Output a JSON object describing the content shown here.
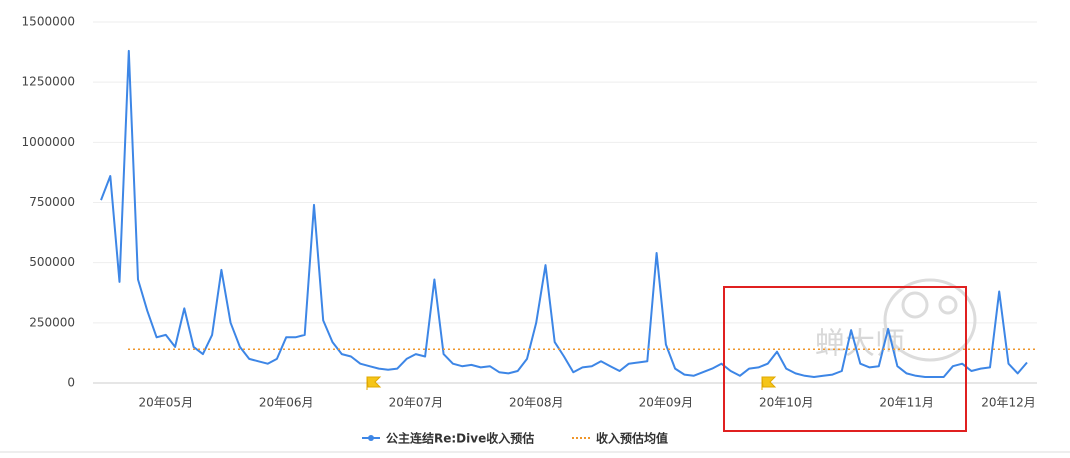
{
  "chart_data": {
    "type": "line",
    "categories": [
      null,
      null,
      null,
      null,
      null,
      null,
      null,
      "20年05月",
      null,
      null,
      null,
      null,
      null,
      null,
      null,
      null,
      null,
      null,
      null,
      null,
      "20年06月",
      null,
      null,
      null,
      null,
      null,
      null,
      null,
      null,
      null,
      null,
      null,
      null,
      null,
      "20年07月",
      null,
      null,
      null,
      null,
      null,
      null,
      null,
      null,
      null,
      null,
      null,
      null,
      "20年08月",
      null,
      null,
      null,
      null,
      null,
      null,
      null,
      null,
      null,
      null,
      null,
      null,
      null,
      "20年09月",
      null,
      null,
      null,
      null,
      null,
      null,
      null,
      null,
      null,
      null,
      null,
      null,
      "20年10月",
      null,
      null,
      null,
      null,
      null,
      null,
      null,
      null,
      null,
      null,
      null,
      null,
      "20年11月",
      null,
      null,
      null,
      null,
      null,
      null,
      null,
      null,
      null,
      null,
      "20年12月",
      null,
      null
    ],
    "series": [
      {
        "name": "公主连结Re:Dive收入预估",
        "color": "#3d86e6",
        "values": [
          760000,
          860000,
          420000,
          1380000,
          430000,
          300000,
          190000,
          200000,
          150000,
          310000,
          150000,
          120000,
          200000,
          470000,
          250000,
          150000,
          100000,
          90000,
          80000,
          100000,
          190000,
          190000,
          200000,
          740000,
          260000,
          170000,
          120000,
          110000,
          80000,
          70000,
          60000,
          55000,
          60000,
          100000,
          120000,
          110000,
          430000,
          120000,
          80000,
          70000,
          75000,
          65000,
          70000,
          45000,
          40000,
          50000,
          100000,
          250000,
          490000,
          170000,
          110000,
          45000,
          65000,
          70000,
          90000,
          70000,
          50000,
          80000,
          85000,
          90000,
          540000,
          160000,
          60000,
          35000,
          30000,
          45000,
          60000,
          80000,
          50000,
          30000,
          60000,
          65000,
          80000,
          130000,
          60000,
          40000,
          30000,
          25000,
          30000,
          35000,
          50000,
          220000,
          80000,
          65000,
          70000,
          225000,
          70000,
          40000,
          30000,
          25000,
          25000,
          25000,
          70000,
          80000,
          50000,
          60000,
          65000,
          380000,
          80000,
          40000,
          85000
        ]
      }
    ],
    "average_line": {
      "name": "收入预估均值",
      "value": 140000,
      "color": "#f0962a"
    },
    "ylim": [
      0,
      1500000
    ],
    "yticks": [
      0,
      250000,
      500000,
      750000,
      1000000,
      1250000,
      1500000
    ],
    "grid": true,
    "watermark": "蝉大师"
  }
}
